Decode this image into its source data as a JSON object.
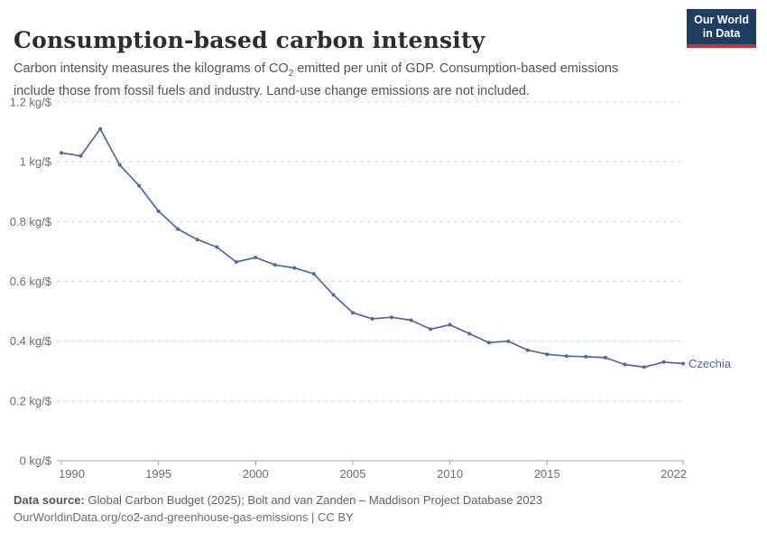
{
  "header": {
    "title": "Consumption-based carbon intensity",
    "subtitle": {
      "part1": "Carbon intensity measures the kilograms of CO",
      "sub": "2",
      "part2": " emitted per unit of GDP. Consumption-based emissions include those from fossil fuels and industry. Land-use change emissions are not included."
    },
    "logo": {
      "line1": "Our World",
      "line2": "in Data",
      "bg_color": "#1d3d63",
      "accent_color": "#c2303c"
    }
  },
  "chart_data": {
    "type": "line",
    "title": "Consumption-based carbon intensity",
    "unit": "kg/$",
    "grid": "horizontal-dashed",
    "legend_position": "end-of-line-label",
    "ylim": [
      0,
      1.2
    ],
    "yticks": [
      {
        "v": 0,
        "label": "0 kg/$"
      },
      {
        "v": 0.2,
        "label": "0.2 kg/$"
      },
      {
        "v": 0.4,
        "label": "0.4 kg/$"
      },
      {
        "v": 0.6,
        "label": "0.6 kg/$"
      },
      {
        "v": 0.8,
        "label": "0.8 kg/$"
      },
      {
        "v": 1,
        "label": "1 kg/$"
      },
      {
        "v": 1.2,
        "label": "1.2 kg/$"
      }
    ],
    "xticks": [
      1990,
      1995,
      2000,
      2005,
      2010,
      2015,
      2022
    ],
    "x": [
      1990,
      1991,
      1992,
      1993,
      1994,
      1995,
      1996,
      1997,
      1998,
      1999,
      2000,
      2001,
      2002,
      2003,
      2004,
      2005,
      2006,
      2007,
      2008,
      2009,
      2010,
      2011,
      2012,
      2013,
      2014,
      2015,
      2016,
      2017,
      2018,
      2019,
      2020,
      2021,
      2022
    ],
    "series": [
      {
        "name": "Czechia",
        "color": "#4c6a9c",
        "values": [
          1.03,
          1.02,
          1.11,
          0.99,
          0.92,
          0.835,
          0.775,
          0.74,
          0.715,
          0.665,
          0.68,
          0.655,
          0.645,
          0.625,
          0.555,
          0.495,
          0.475,
          0.48,
          0.47,
          0.44,
          0.455,
          0.425,
          0.395,
          0.4,
          0.37,
          0.356,
          0.35,
          0.348,
          0.345,
          0.322,
          0.313,
          0.33,
          0.325
        ]
      }
    ],
    "colors": {
      "gridline": "#dcdcdc",
      "axis": "#a5a5a5",
      "tick_text": "#6e6e6e"
    }
  },
  "footer": {
    "source_label": "Data source:",
    "source_text": " Global Carbon Budget (2025); Bolt and van Zanden – Maddison Project Database 2023",
    "link_text": "OurWorldinData.org/co2-and-greenhouse-gas-emissions",
    "license_sep": " | ",
    "license": "CC BY"
  }
}
